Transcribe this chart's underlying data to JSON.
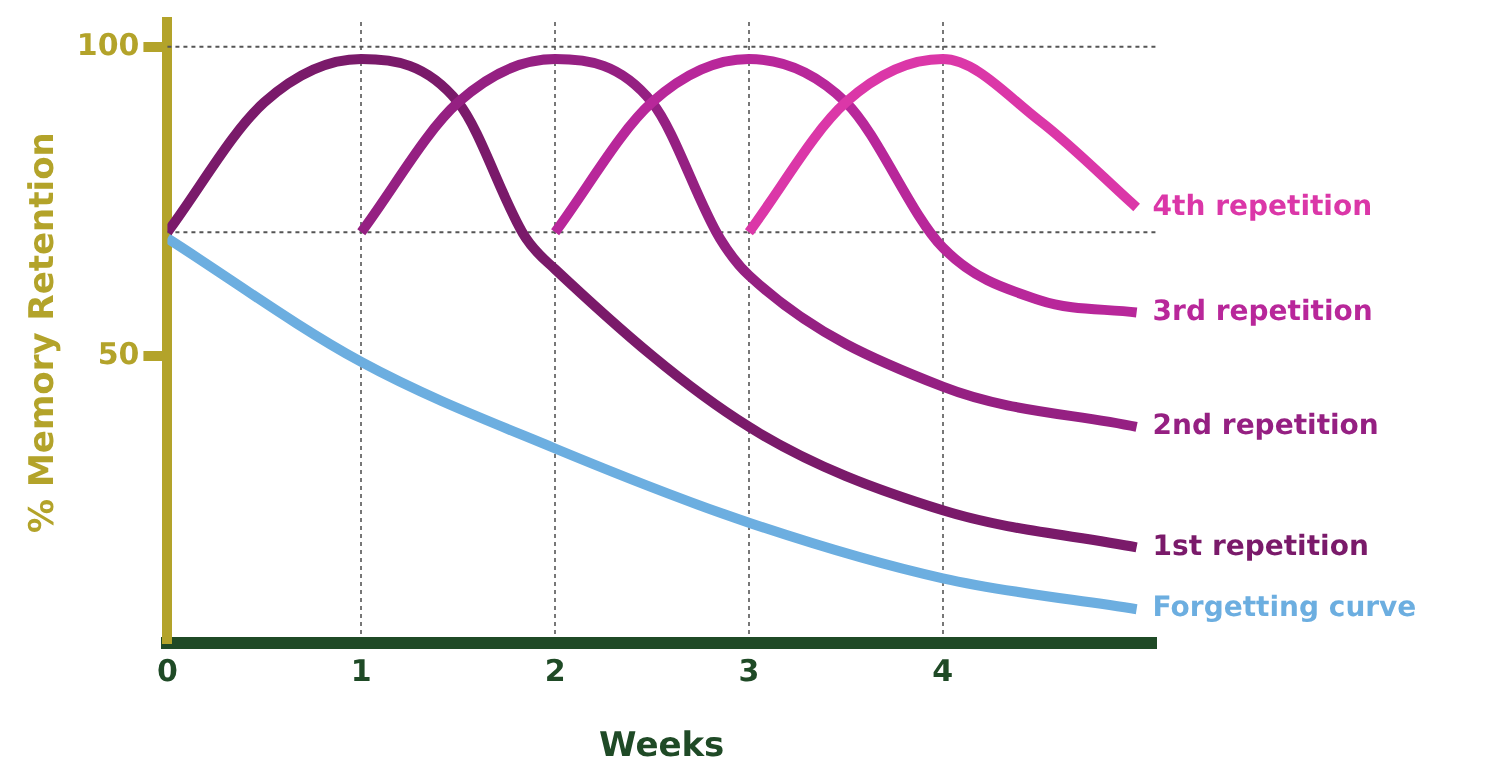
{
  "chart_data": {
    "type": "line",
    "xlabel": "Weeks",
    "ylabel": "% Memory Retention",
    "xlim": [
      0,
      5.1
    ],
    "ylim": [
      3.5,
      104
    ],
    "xticks": [
      0,
      1,
      2,
      3,
      4
    ],
    "yticks": [
      50,
      100
    ],
    "grid": "x",
    "legend": false,
    "line_style": "solid",
    "ref_lines": [
      {
        "axis": "y",
        "value": 100,
        "color": "#555555",
        "line_style": "dotted"
      },
      {
        "axis": "y",
        "value": 70,
        "color": "#555555",
        "line_style": "dotted"
      }
    ],
    "series": [
      {
        "name": "4th repetition",
        "color": "#db37a8",
        "x": [
          3,
          3.5,
          4,
          4.5,
          5
        ],
        "values": [
          70,
          91,
          98,
          88,
          74
        ]
      },
      {
        "name": "3rd repetition",
        "color": "#b8279a",
        "x": [
          2,
          2.5,
          3,
          3.5,
          4,
          4.5,
          5
        ],
        "values": [
          70,
          91,
          98,
          91,
          67.5,
          59,
          57
        ]
      },
      {
        "name": "2nd repetition",
        "color": "#952082",
        "x": [
          1,
          1.5,
          2,
          2.5,
          2.85,
          3,
          4,
          5
        ],
        "values": [
          70,
          91,
          98,
          91,
          69,
          63,
          45,
          38.5
        ]
      },
      {
        "name": "1st repetition",
        "color": "#7a1a6a",
        "x": [
          0,
          0.5,
          1,
          1.5,
          1.85,
          2,
          3,
          4,
          5
        ],
        "values": [
          70,
          91,
          98,
          91,
          69,
          64,
          38.5,
          25,
          19
        ]
      },
      {
        "name": "Forgetting curve",
        "color": "#6caee0",
        "x": [
          0,
          1,
          2,
          3,
          4,
          5
        ],
        "values": [
          69,
          49,
          35,
          23,
          14,
          9
        ]
      }
    ]
  }
}
